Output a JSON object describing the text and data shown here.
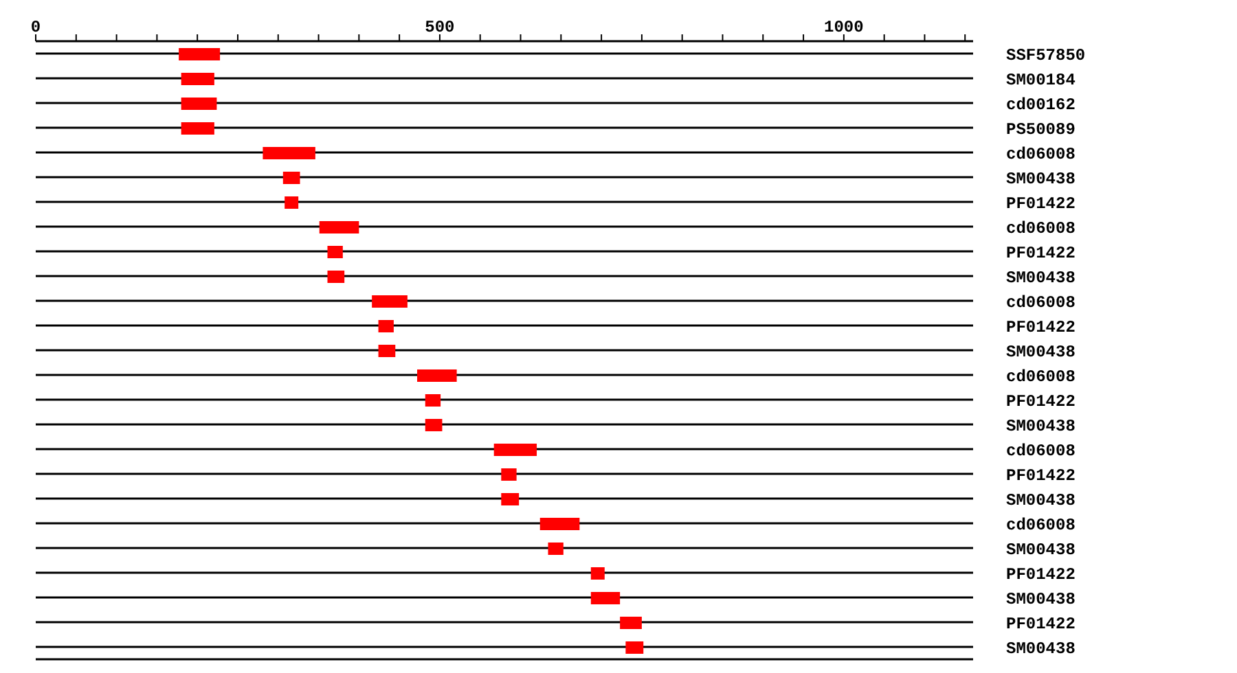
{
  "chart_data": {
    "type": "bar",
    "orientation": "horizontal",
    "categories": [
      "SSF57850",
      "SM00184",
      "cd00162",
      "PS50089",
      "cd06008",
      "SM00438",
      "PF01422",
      "cd06008",
      "PF01422",
      "SM00438",
      "cd06008",
      "PF01422",
      "SM00438",
      "cd06008",
      "PF01422",
      "SM00438",
      "cd06008",
      "PF01422",
      "SM00438",
      "cd06008",
      "SM00438",
      "PF01422",
      "SM00438",
      "PF01422",
      "SM00438"
    ],
    "base": [
      177,
      180,
      180,
      180,
      281,
      306,
      308,
      351,
      361,
      361,
      416,
      424,
      424,
      472,
      482,
      482,
      567,
      576,
      576,
      624,
      634,
      687,
      687,
      723,
      730
    ],
    "values": [
      51,
      41,
      44,
      41,
      65,
      21,
      17,
      49,
      19,
      21,
      44,
      19,
      21,
      49,
      19,
      21,
      53,
      19,
      22,
      49,
      19,
      17,
      36,
      27,
      22
    ],
    "color": "#ff0000",
    "xlim": [
      0,
      1160
    ],
    "xticks": [
      0,
      {
        "value": 50,
        "label": null
      },
      {
        "value": 100,
        "label": null
      },
      {
        "value": 150,
        "label": null
      },
      {
        "value": 200,
        "label": null
      },
      {
        "value": 250,
        "label": null
      },
      {
        "value": 300,
        "label": null
      },
      {
        "value": 350,
        "label": null
      },
      {
        "value": 400,
        "label": null
      },
      {
        "value": 450,
        "label": null
      },
      500,
      {
        "value": 550,
        "label": null
      },
      {
        "value": 600,
        "label": null
      },
      {
        "value": 650,
        "label": null
      },
      {
        "value": 700,
        "label": null
      },
      {
        "value": 750,
        "label": null
      },
      {
        "value": 800,
        "label": null
      },
      {
        "value": 850,
        "label": null
      },
      {
        "value": 900,
        "label": null
      },
      {
        "value": 950,
        "label": null
      },
      1000,
      {
        "value": 1050,
        "label": null
      },
      {
        "value": 1100,
        "label": null
      },
      {
        "value": 1150,
        "label": null
      }
    ],
    "grid": "y",
    "legend": false
  }
}
